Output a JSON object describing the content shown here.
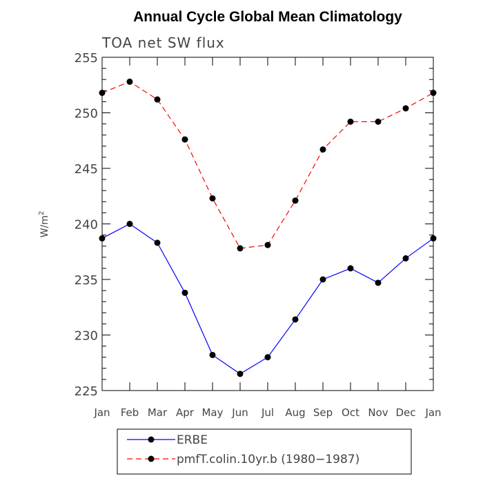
{
  "chart_data": {
    "type": "line",
    "title": "Annual Cycle Global Mean Climatology",
    "subtitle": "TOA net SW flux",
    "ylabel": "W/m",
    "ylabel_sup": "2",
    "xlabel": "",
    "categories": [
      "Jan",
      "Feb",
      "Mar",
      "Apr",
      "May",
      "Jun",
      "Jul",
      "Aug",
      "Sep",
      "Oct",
      "Nov",
      "Dec",
      "Jan"
    ],
    "ylim": [
      225,
      255
    ],
    "yticks": [
      225,
      230,
      235,
      240,
      245,
      250,
      255
    ],
    "grid": false,
    "legend_position": "bottom",
    "series": [
      {
        "name": "ERBE",
        "color": "#0000ff",
        "style": "solid",
        "marker": "circle",
        "values": [
          238.7,
          240.0,
          238.3,
          233.8,
          228.2,
          226.5,
          228.0,
          231.4,
          235.0,
          236.0,
          234.7,
          236.9,
          238.7
        ]
      },
      {
        "name": "pmfT.colin.10yr.b (1980−1987)",
        "color": "#ff0000",
        "style": "dashed",
        "marker": "circle",
        "values": [
          251.8,
          252.8,
          251.2,
          247.6,
          242.3,
          237.8,
          238.1,
          242.1,
          246.7,
          249.2,
          249.2,
          250.4,
          251.8
        ]
      }
    ]
  }
}
